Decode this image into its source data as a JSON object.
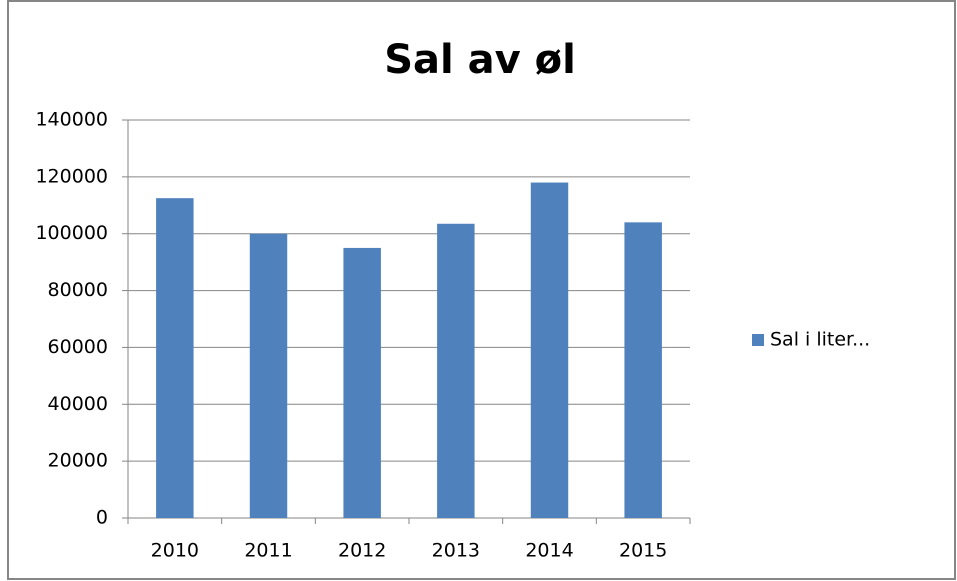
{
  "chart_data": {
    "type": "bar",
    "title": "Sal av øl",
    "categories": [
      "2010",
      "2011",
      "2012",
      "2013",
      "2014",
      "2015"
    ],
    "series": [
      {
        "name": "Sal i liter...",
        "color": "#4f81bd",
        "values": [
          112500,
          100000,
          95000,
          103500,
          118000,
          104000
        ]
      }
    ],
    "ylim": [
      0,
      140000
    ],
    "yticks": [
      0,
      20000,
      40000,
      60000,
      80000,
      100000,
      120000,
      140000
    ],
    "grid": true,
    "legend": "right"
  }
}
